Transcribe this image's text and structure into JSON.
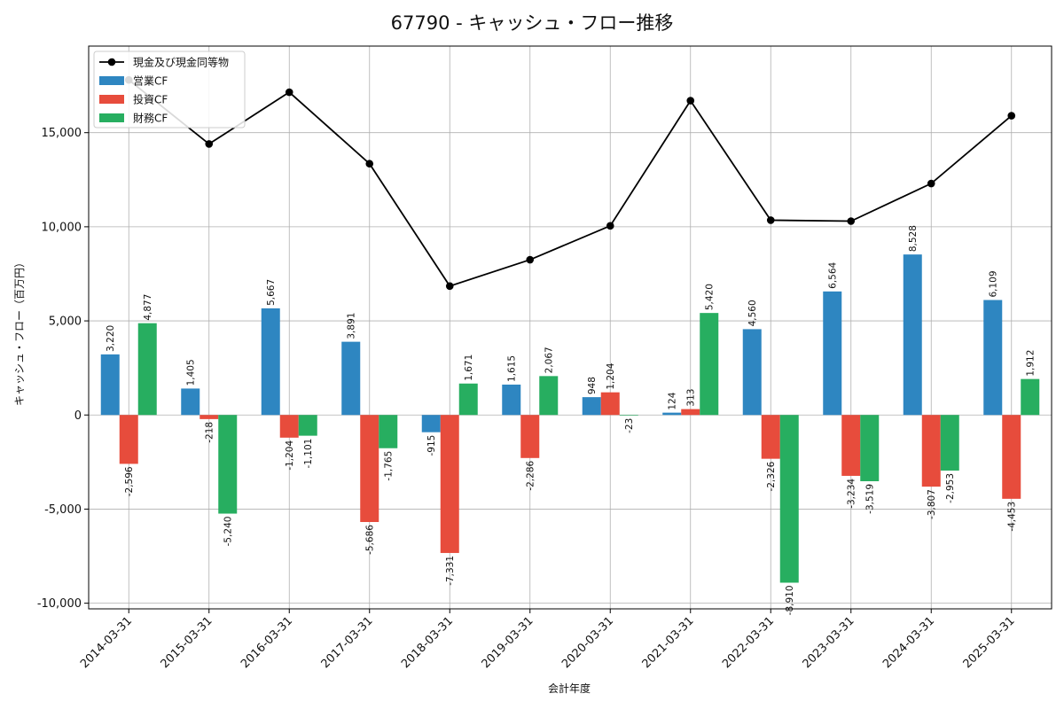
{
  "chart_data": {
    "type": "bar",
    "title": "67790 - キャッシュ・フロー推移",
    "xlabel": "会計年度",
    "ylabel": "キャッシュ・フロー（百万円）",
    "categories": [
      "2014-03-31",
      "2015-03-31",
      "2016-03-31",
      "2017-03-31",
      "2018-03-31",
      "2019-03-31",
      "2020-03-31",
      "2021-03-31",
      "2022-03-31",
      "2023-03-31",
      "2024-03-31",
      "2025-03-31"
    ],
    "ylim": [
      -10300,
      19600
    ],
    "yticks": [
      -10000,
      -5000,
      0,
      5000,
      10000,
      15000
    ],
    "ytick_labels": [
      "-10,000",
      "-5,000",
      "0",
      "5,000",
      "10,000",
      "15,000"
    ],
    "grid": true,
    "legend_position": "top-left",
    "series": [
      {
        "name": "営業CF",
        "kind": "bar",
        "color": "#2e86c1",
        "values": [
          3220,
          1405,
          5667,
          3891,
          -915,
          1615,
          948,
          124,
          4560,
          6564,
          8528,
          6109
        ],
        "labels": [
          "3,220",
          "1,405",
          "5,667",
          "3,891",
          "-915",
          "1,615",
          "948",
          "124",
          "4,560",
          "6,564",
          "8,528",
          "6,109"
        ]
      },
      {
        "name": "投資CF",
        "kind": "bar",
        "color": "#e74c3c",
        "values": [
          -2596,
          -218,
          -1204,
          -5686,
          -7331,
          -2286,
          1204,
          313,
          -2326,
          -3234,
          -3807,
          -4453
        ],
        "labels": [
          "-2,596",
          "-218",
          "-1,204",
          "-5,686",
          "-7,331",
          "-2,286",
          "1,204",
          "313",
          "-2,326",
          "-3,234",
          "-3,807",
          "-4,453"
        ]
      },
      {
        "name": "財務CF",
        "kind": "bar",
        "color": "#27ae60",
        "values": [
          4877,
          -5240,
          -1101,
          -1765,
          1671,
          2067,
          -23,
          5420,
          -8910,
          -3519,
          -2953,
          1912
        ],
        "labels": [
          "4,877",
          "-5,240",
          "-1,101",
          "-1,765",
          "1,671",
          "2,067",
          "-23",
          "5,420",
          "-8,910",
          "-3,519",
          "-2,953",
          "1,912"
        ]
      },
      {
        "name": "現金及び現金同等物",
        "kind": "line",
        "color": "#000000",
        "values": [
          17800,
          14400,
          17150,
          13350,
          6850,
          8250,
          10050,
          16700,
          10350,
          10300,
          12300,
          15900
        ]
      }
    ]
  }
}
